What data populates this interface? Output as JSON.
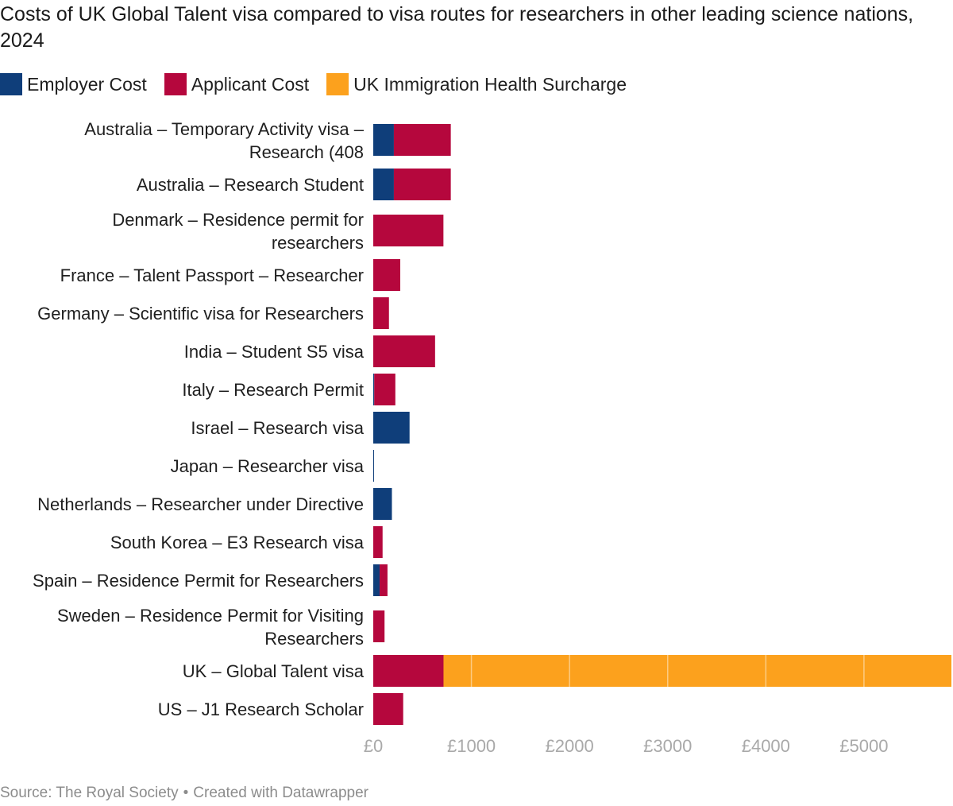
{
  "chart_data": {
    "type": "bar",
    "orientation": "horizontal",
    "stacked": true,
    "title": "Costs of UK Global Talent visa compared to visa routes for researchers in other leading science nations, 2024",
    "categories": [
      "Australia – Temporary Activity visa – Research (408",
      "Australia – Research Student",
      "Denmark – Residence permit for researchers",
      "France – Talent Passport – Researcher",
      "Germany – Scientific visa for Researchers",
      "India – Student S5 visa",
      "Italy – Research Permit",
      "Israel – Research visa",
      "Japan – Researcher visa",
      "Netherlands – Researcher under Directive",
      "South Korea – E3 Research visa",
      "Spain – Residence Permit for Researchers",
      "Sweden – Residence Permit for Visiting Researchers",
      "UK – Global Talent visa",
      "US – J1 Research Scholar"
    ],
    "series": [
      {
        "name": "Employer Cost",
        "color": "#0f3e7a",
        "values": [
          210,
          210,
          0,
          0,
          0,
          0,
          10,
          370,
          8,
          190,
          0,
          65,
          0,
          0,
          0
        ]
      },
      {
        "name": "Applicant Cost",
        "color": "#b5073d",
        "values": [
          580,
          580,
          715,
          275,
          160,
          630,
          215,
          0,
          0,
          0,
          95,
          80,
          115,
          716,
          305
        ]
      },
      {
        "name": "UK Immigration Health Surcharge",
        "color": "#fca11d",
        "values": [
          0,
          0,
          0,
          0,
          0,
          0,
          0,
          0,
          0,
          0,
          0,
          0,
          0,
          5175,
          0
        ]
      }
    ],
    "xlim": [
      0,
      5891
    ],
    "xticks": [
      0,
      1000,
      2000,
      3000,
      4000,
      5000
    ],
    "xtick_labels": [
      "£0",
      "£1000",
      "£2000",
      "£3000",
      "£4000",
      "£5000"
    ],
    "xlabel": "",
    "ylabel": "",
    "grid": true,
    "legend_position": "top-left"
  },
  "footer": {
    "source": "Source: The Royal Society",
    "separator": "•",
    "credit": "Created with Datawrapper"
  }
}
